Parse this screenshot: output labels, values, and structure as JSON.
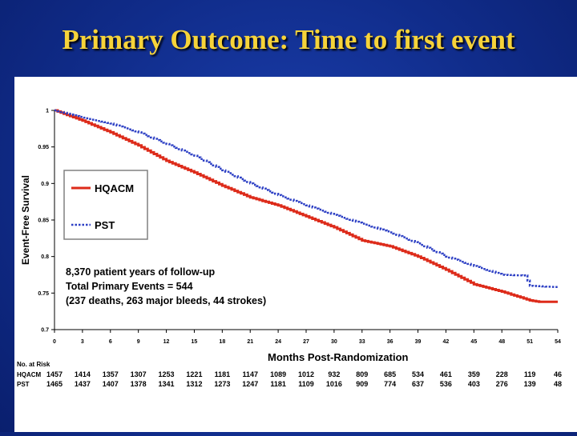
{
  "slide": {
    "title": "Primary Outcome: Time to first event"
  },
  "chart_data": {
    "type": "line",
    "xlabel": "Months Post-Randomization",
    "ylabel": "Event-Free Survival",
    "xlim": [
      0,
      54
    ],
    "ylim": [
      0.7,
      1.0
    ],
    "x_ticks": [
      "0",
      "3",
      "6",
      "9",
      "12",
      "15",
      "18",
      "21",
      "24",
      "27",
      "30",
      "33",
      "36",
      "39",
      "42",
      "45",
      "48",
      "51",
      "54"
    ],
    "y_ticks": [
      "0.7",
      "0.75",
      "0.8",
      "0.85",
      "0.9",
      "0.95",
      "1"
    ],
    "series": [
      {
        "name": "HQACM",
        "color": "#dd2b1a",
        "style": "solid",
        "x": [
          0,
          3,
          6,
          9,
          12,
          15,
          18,
          21,
          24,
          27,
          30,
          33,
          36,
          39,
          42,
          45,
          48,
          51,
          52,
          54
        ],
        "y": [
          1.0,
          0.986,
          0.97,
          0.952,
          0.931,
          0.915,
          0.897,
          0.881,
          0.87,
          0.855,
          0.84,
          0.822,
          0.814,
          0.8,
          0.782,
          0.762,
          0.752,
          0.74,
          0.738,
          0.738
        ]
      },
      {
        "name": "PST",
        "color": "#2c3fc4",
        "style": "dotted",
        "x": [
          0,
          3,
          6,
          9,
          12,
          15,
          18,
          21,
          24,
          27,
          30,
          33,
          36,
          39,
          42,
          45,
          48,
          50.5,
          51,
          54
        ],
        "y": [
          1.0,
          0.99,
          0.982,
          0.97,
          0.954,
          0.938,
          0.918,
          0.9,
          0.884,
          0.87,
          0.857,
          0.845,
          0.833,
          0.818,
          0.8,
          0.787,
          0.775,
          0.774,
          0.76,
          0.758
        ]
      }
    ],
    "legend": [
      {
        "label": "HQACM",
        "series": 0
      },
      {
        "label": "PST",
        "series": 1
      }
    ],
    "annotations": [
      "8,370 patient years of follow-up",
      "Total Primary Events = 544",
      "(237 deaths, 263 major bleeds, 44 strokes)"
    ],
    "at_risk": {
      "title": "No. at Risk",
      "rows": [
        {
          "label": "HQACM",
          "values": [
            "1457",
            "1414",
            "1357",
            "1307",
            "1253",
            "1221",
            "1181",
            "1147",
            "1089",
            "1012",
            "932",
            "809",
            "685",
            "534",
            "461",
            "359",
            "228",
            "119",
            "46"
          ]
        },
        {
          "label": "PST",
          "values": [
            "1465",
            "1437",
            "1407",
            "1378",
            "1341",
            "1312",
            "1273",
            "1247",
            "1181",
            "1109",
            "1016",
            "909",
            "774",
            "637",
            "536",
            "403",
            "276",
            "139",
            "48"
          ]
        }
      ]
    }
  }
}
